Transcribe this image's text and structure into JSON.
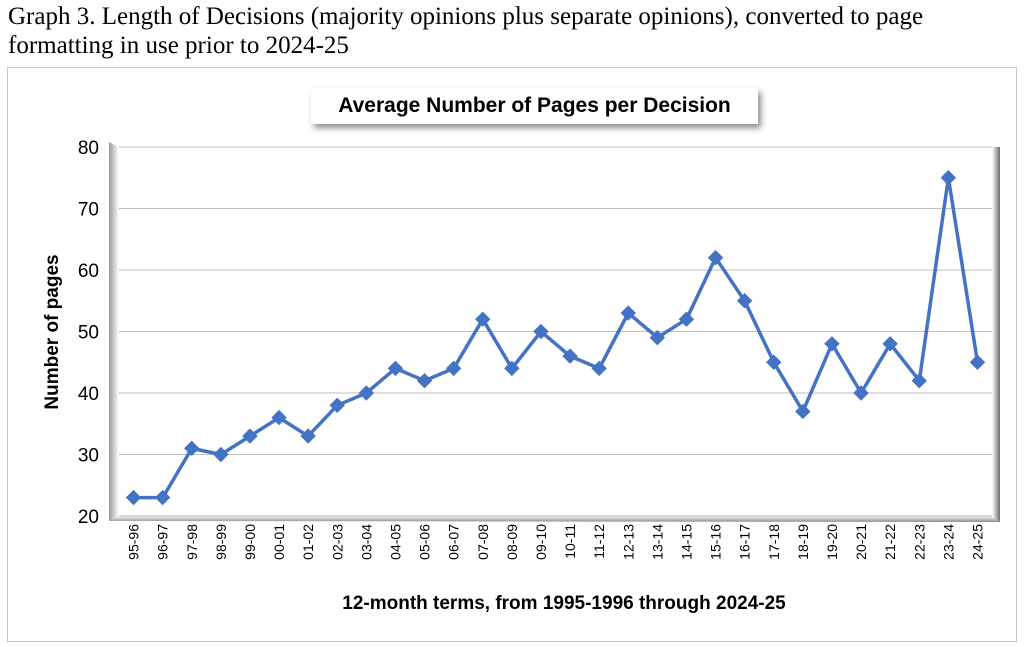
{
  "caption": "Graph 3.  Length of Decisions (majority opinions plus separate opinions), converted to page formatting in use prior to 2024-25",
  "chart_data": {
    "type": "line",
    "title": "Average Number of Pages per Decision",
    "xlabel": "12-month terms, from 1995-1996 through 2024-25",
    "ylabel": "Number of pages",
    "ylim": [
      20,
      80
    ],
    "yticks": [
      20,
      30,
      40,
      50,
      60,
      70,
      80
    ],
    "grid": true,
    "legend": "none",
    "categories": [
      "95-96",
      "96-97",
      "97-98",
      "98-99",
      "99-00",
      "00-01",
      "01-02",
      "02-03",
      "03-04",
      "04-05",
      "05-06",
      "06-07",
      "07-08",
      "08-09",
      "09-10",
      "10-11",
      "11-12",
      "12-13",
      "13-14",
      "14-15",
      "15-16",
      "16-17",
      "17-18",
      "18-19",
      "19-20",
      "20-21",
      "21-22",
      "22-23",
      "23-24",
      "24-25"
    ],
    "series": [
      {
        "values": [
          23,
          23,
          31,
          30,
          33,
          36,
          33,
          38,
          40,
          44,
          42,
          44,
          52,
          44,
          50,
          46,
          44,
          53,
          49,
          52,
          62,
          55,
          45,
          37,
          48,
          40,
          48,
          42,
          75,
          45
        ],
        "color": "#4472c4",
        "marker": "diamond"
      }
    ]
  }
}
